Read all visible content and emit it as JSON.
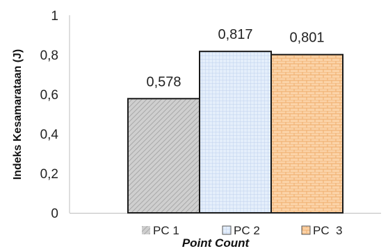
{
  "chart_data": {
    "type": "bar",
    "categories": [
      "PC 1",
      "PC 2",
      "PC  3"
    ],
    "values": [
      0.578,
      0.817,
      0.801
    ],
    "value_labels": [
      "0,578",
      "0,817",
      "0,801"
    ],
    "xlabel": "Point Count",
    "ylabel": "Indeks Kesamarataan (J)",
    "ylim": [
      0,
      1
    ],
    "yticks": [
      0,
      0.2,
      0.4,
      0.6,
      0.8,
      1
    ],
    "ytick_labels": [
      "0",
      "0,2",
      "0,4",
      "0,6",
      "0,8",
      "1"
    ],
    "grid": false,
    "legend": {
      "placement": "bottom",
      "entries": [
        "PC 1",
        "PC 2",
        "PC  3"
      ]
    },
    "colors": [
      "#c4c4c4",
      "#dce8f8",
      "#f8cfa2"
    ],
    "border_color": "#1a1a1a"
  }
}
